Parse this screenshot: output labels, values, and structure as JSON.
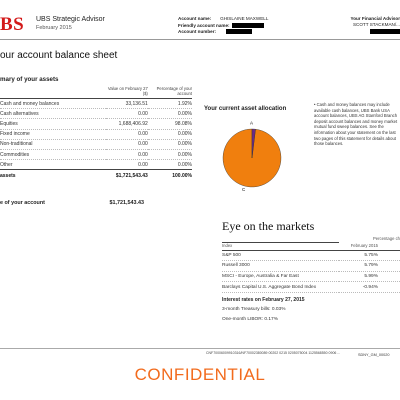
{
  "header": {
    "logo": "BS",
    "advisor_name": "UBS Strategic Advisor",
    "statement_month": "February 2015",
    "account_info": {
      "account_name_label": "Account name:",
      "account_name_value": "GHISLAINE MAXWELL",
      "friendly_label": "Friendly account name:",
      "number_label": "Account number:"
    },
    "right_label": "Your Financial Advisor",
    "right_name": "SCOTT STACKMAN/..."
  },
  "page_title": "our account balance sheet",
  "assets_section": {
    "title": "mary of your assets",
    "col_value": "Value on February 27 ($)",
    "col_pct": "Percentage of your account",
    "rows": [
      {
        "category": "Cash and money balances",
        "value": "33,136.51",
        "pct": "1.92%"
      },
      {
        "category": "Cash alternatives",
        "value": "0.00",
        "pct": "0.00%"
      },
      {
        "category": "Equities",
        "value": "1,688,406.92",
        "pct": "98.08%"
      },
      {
        "category": "Fixed income",
        "value": "0.00",
        "pct": "0.00%"
      },
      {
        "category": "Non-traditional",
        "value": "0.00",
        "pct": "0.00%"
      },
      {
        "category": "Commodities",
        "value": "0.00",
        "pct": "0.00%"
      },
      {
        "category": "Other",
        "value": "0.00",
        "pct": "0.00%"
      }
    ],
    "total": {
      "label": "assets",
      "value": "$1,721,543.43",
      "pct": "100.00%"
    }
  },
  "net_value": {
    "label": "e of your account",
    "value": "$1,721,543.43"
  },
  "allocation": {
    "title": "Your current asset allocation",
    "label_a": "A",
    "label_c": "C",
    "cash_pct": 1.92,
    "equities_pct": 98.08,
    "color_a": "#6b2a8a",
    "color_c": "#f07f0e"
  },
  "note_text": "• Cash and money balances may include available cash balances, UBS Bank USA account balances, UBS AG Stamford Branch deposit account balances and money market mutual fund sweep balances. See the information about your statement on the last two pages of this statement for details about those balances.",
  "markets": {
    "title": "Eye on the markets",
    "col_index": "Index",
    "col_change_top": "Percentage ch",
    "col_change": "February 2015",
    "rows": [
      {
        "index": "S&P 500",
        "change": "5.75%"
      },
      {
        "index": "Russell 3000",
        "change": "5.79%"
      },
      {
        "index": "MSCI - Europe, Australia & Far East",
        "change": "5.99%"
      },
      {
        "index": "Barclays Capital U.S. Aggregate Bond Index",
        "change": "-0.94%"
      }
    ],
    "rates_title": "Interest rates on February 27, 2015",
    "rate_treasury": "3-month Treasury bills: 0.03%",
    "rate_libor": "One-month LIBOR: 0.17%"
  },
  "footer": {
    "code": "CNF70006009910316/NF70002380089 00202 0215 0205075004 1125568550 0906 ...",
    "bates": "SDNY_GM_00020",
    "confidential": "CONFIDENTIAL"
  }
}
